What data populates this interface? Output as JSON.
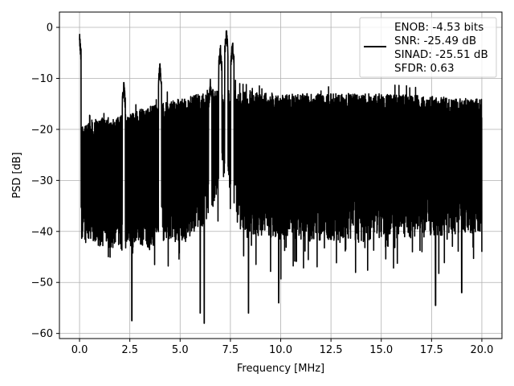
{
  "chart_data": {
    "type": "line",
    "xlabel": "Frequency [MHz]",
    "ylabel": "PSD [dB]",
    "xlim": [
      -1.0,
      21.0
    ],
    "ylim": [
      -61.0,
      3.0
    ],
    "x_ticks": [
      0.0,
      2.5,
      5.0,
      7.5,
      10.0,
      12.5,
      15.0,
      17.5,
      20.0
    ],
    "x_tick_labels": [
      "0.0",
      "2.5",
      "5.0",
      "7.5",
      "10.0",
      "12.5",
      "15.0",
      "17.5",
      "20.0"
    ],
    "y_ticks": [
      0,
      -10,
      -20,
      -30,
      -40,
      -50,
      -60
    ],
    "y_tick_labels": [
      "0",
      "−10",
      "−20",
      "−30",
      "−40",
      "−50",
      "−60"
    ],
    "grid": true,
    "legend_position": "upper-right",
    "legend_lines": [
      "ENOB: -4.53 bits",
      "SNR: -25.49 dB",
      "SINAD: -25.51 dB",
      "SFDR: 0.63"
    ],
    "line_color": "#000000",
    "series": [
      {
        "x_start": 0.0,
        "x_end": 20.0,
        "noise_floor_envelope": [
          [
            0.0,
            -20
          ],
          [
            0.6,
            -18
          ],
          [
            2.5,
            -17
          ],
          [
            3.0,
            -16
          ],
          [
            4.0,
            -15
          ],
          [
            5.0,
            -14
          ],
          [
            6.0,
            -13
          ],
          [
            6.5,
            -12
          ],
          [
            10.0,
            -13
          ],
          [
            12.0,
            -13
          ],
          [
            15.0,
            -13
          ],
          [
            20.0,
            -14
          ]
        ],
        "noise_min_envelope": [
          [
            0.0,
            -42
          ],
          [
            2.5,
            -44
          ],
          [
            5.0,
            -42
          ],
          [
            6.0,
            -40
          ],
          [
            6.5,
            -36
          ],
          [
            7.3,
            -28
          ],
          [
            8.0,
            -40
          ],
          [
            10.0,
            -42
          ],
          [
            15.0,
            -42
          ],
          [
            20.0,
            -40
          ]
        ],
        "peaks": [
          {
            "x": 0.0,
            "y": -0.6
          },
          {
            "x": 2.2,
            "y": -10.5
          },
          {
            "x": 4.0,
            "y": -6.5
          },
          {
            "x": 6.5,
            "y": -10
          },
          {
            "x": 7.0,
            "y": -3
          },
          {
            "x": 7.3,
            "y": 0.0
          },
          {
            "x": 7.6,
            "y": -2
          }
        ],
        "deep_dips": [
          {
            "x": 2.6,
            "y": -57.5
          },
          {
            "x": 6.0,
            "y": -56
          },
          {
            "x": 6.2,
            "y": -58
          },
          {
            "x": 8.4,
            "y": -56
          },
          {
            "x": 9.9,
            "y": -54
          },
          {
            "x": 17.7,
            "y": -54.5
          },
          {
            "x": 19.0,
            "y": -52
          }
        ]
      }
    ]
  }
}
